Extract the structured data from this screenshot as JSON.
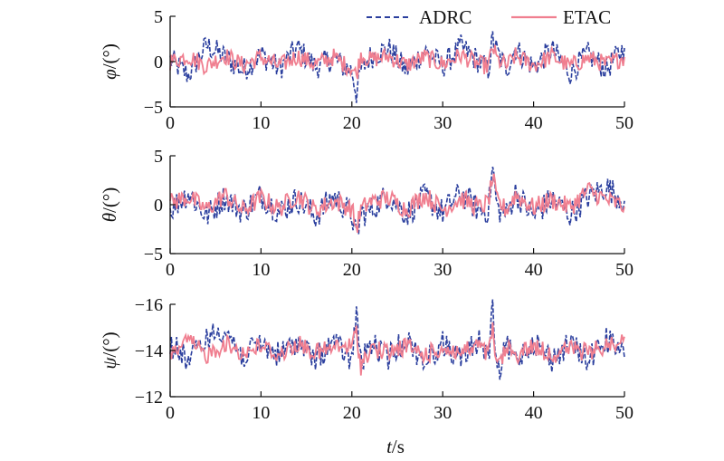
{
  "colors": {
    "adrc": "#2b3f9e",
    "etac": "#f07f90",
    "axis": "#111111"
  },
  "legend": {
    "placement": "top-right",
    "items": [
      "ADRC",
      "ETAC"
    ]
  },
  "chart_data": [
    {
      "type": "line",
      "ylabel": {
        "symbol": "φ",
        "unit": "/(°)"
      },
      "xlim": [
        0,
        50
      ],
      "ylim": [
        -5,
        5
      ],
      "xticks": [
        "0",
        "10",
        "20",
        "30",
        "40",
        "50"
      ],
      "yticks": [
        "5",
        "0",
        "−5"
      ],
      "series": [
        {
          "name": "ADRC",
          "style": "dashed",
          "x": [
            0,
            2,
            4,
            6,
            8,
            10,
            12,
            14,
            16,
            18,
            19,
            20,
            20.5,
            21,
            22,
            24,
            26,
            28,
            30,
            32,
            34,
            35,
            35.5,
            36,
            37,
            38,
            40,
            42,
            44,
            46,
            48,
            50
          ],
          "y": [
            0.2,
            -1.5,
            1.8,
            0.5,
            -1.0,
            0.8,
            -0.8,
            1.5,
            -0.6,
            0.4,
            -0.5,
            -1.0,
            -3.5,
            -1.0,
            0.5,
            1.5,
            -1.0,
            1.2,
            -0.5,
            1.6,
            0.0,
            -1.0,
            2.5,
            1.0,
            -0.8,
            1.4,
            -0.6,
            1.3,
            -1.2,
            0.8,
            -0.8,
            1.5
          ]
        },
        {
          "name": "ETAC",
          "style": "solid",
          "x": [
            0,
            2,
            4,
            6,
            8,
            10,
            12,
            14,
            16,
            18,
            19,
            20,
            20.5,
            21,
            22,
            24,
            26,
            28,
            30,
            32,
            34,
            35,
            35.5,
            36,
            37,
            38,
            40,
            42,
            44,
            46,
            48,
            50
          ],
          "y": [
            0.0,
            0.6,
            -0.5,
            0.7,
            -0.4,
            0.5,
            -0.5,
            0.6,
            -0.3,
            0.5,
            -0.2,
            -0.7,
            -1.5,
            0.8,
            0.2,
            0.6,
            -0.4,
            0.5,
            -0.3,
            0.7,
            -0.3,
            -0.5,
            1.6,
            0.2,
            -0.5,
            0.6,
            -0.4,
            0.6,
            -0.5,
            0.4,
            -0.3,
            0.5
          ]
        }
      ]
    },
    {
      "type": "line",
      "ylabel": {
        "symbol": "θ",
        "unit": "/(°)"
      },
      "xlim": [
        0,
        50
      ],
      "ylim": [
        -5,
        5
      ],
      "xticks": [
        "0",
        "10",
        "20",
        "30",
        "40",
        "50"
      ],
      "yticks": [
        "5",
        "0",
        "−5"
      ],
      "series": [
        {
          "name": "ADRC",
          "style": "dashed",
          "x": [
            0,
            2,
            4,
            6,
            8,
            10,
            12,
            14,
            16,
            18,
            20,
            20.5,
            21,
            22,
            24,
            26,
            28,
            30,
            32,
            34,
            35,
            35.5,
            36,
            37,
            38,
            40,
            42,
            44,
            46,
            48,
            50
          ],
          "y": [
            -0.5,
            1.2,
            -1.2,
            0.8,
            -0.7,
            1.0,
            -0.8,
            0.6,
            -1.2,
            0.9,
            -1.0,
            -3.5,
            -1.0,
            -0.6,
            1.0,
            -1.0,
            0.8,
            -0.8,
            1.2,
            -0.6,
            -0.6,
            3.8,
            -0.4,
            -1.0,
            1.2,
            -1.2,
            0.6,
            -1.0,
            0.8,
            1.8,
            0.4
          ]
        },
        {
          "name": "ETAC",
          "style": "solid",
          "x": [
            0,
            2,
            4,
            6,
            8,
            10,
            12,
            14,
            16,
            18,
            20,
            20.5,
            21,
            22,
            24,
            26,
            28,
            30,
            32,
            34,
            35,
            35.5,
            36,
            37,
            38,
            40,
            42,
            44,
            46,
            48,
            50
          ],
          "y": [
            0.2,
            0.8,
            -0.5,
            1.0,
            -0.6,
            0.7,
            -0.4,
            1.0,
            -0.6,
            0.4,
            -0.4,
            -2.5,
            -0.5,
            0.3,
            0.7,
            -0.5,
            1.0,
            -0.5,
            0.6,
            -0.3,
            0.2,
            2.8,
            0.3,
            -0.5,
            1.0,
            -0.3,
            0.5,
            -0.3,
            1.5,
            0.5,
            -0.2
          ]
        }
      ]
    },
    {
      "type": "line",
      "ylabel": {
        "symbol": "ψ",
        "unit": "/(°)"
      },
      "xlim": [
        0,
        50
      ],
      "ylim": [
        -16,
        -12
      ],
      "xticks": [
        "0",
        "10",
        "20",
        "30",
        "40",
        "50"
      ],
      "yticks": [
        "−16",
        "−14",
        "−12"
      ],
      "series": [
        {
          "name": "ADRC",
          "style": "dashed",
          "x": [
            0,
            2,
            4,
            6,
            8,
            10,
            12,
            14,
            16,
            18,
            20,
            20.5,
            21,
            22,
            24,
            26,
            28,
            30,
            32,
            34,
            35,
            35.5,
            36,
            37,
            38,
            40,
            42,
            44,
            46,
            48,
            50
          ],
          "y": [
            -14.3,
            -13.6,
            -14.5,
            -15.0,
            -13.7,
            -14.3,
            -13.8,
            -14.4,
            -13.6,
            -14.4,
            -13.5,
            -15.7,
            -13.4,
            -14.3,
            -13.7,
            -14.5,
            -13.5,
            -14.3,
            -13.6,
            -14.5,
            -13.6,
            -15.8,
            -12.8,
            -14.2,
            -13.6,
            -14.4,
            -13.6,
            -14.3,
            -13.6,
            -14.5,
            -13.7
          ]
        },
        {
          "name": "ETAC",
          "style": "solid",
          "x": [
            0,
            2,
            4,
            6,
            8,
            10,
            12,
            14,
            16,
            18,
            20,
            20.5,
            21,
            22,
            24,
            26,
            28,
            30,
            32,
            34,
            35,
            35.5,
            36,
            37,
            38,
            40,
            42,
            44,
            46,
            48,
            50
          ],
          "y": [
            -13.9,
            -14.4,
            -13.8,
            -14.3,
            -13.9,
            -14.2,
            -13.8,
            -14.3,
            -13.9,
            -14.1,
            -14.2,
            -14.8,
            -13.3,
            -14.1,
            -13.9,
            -14.2,
            -13.8,
            -14.1,
            -13.9,
            -14.2,
            -13.8,
            -14.9,
            -13.2,
            -14.1,
            -13.8,
            -14.2,
            -13.8,
            -14.1,
            -13.9,
            -14.2,
            -14.6
          ]
        }
      ]
    }
  ],
  "xaxis": {
    "symbol": "t",
    "unit": "/s"
  }
}
